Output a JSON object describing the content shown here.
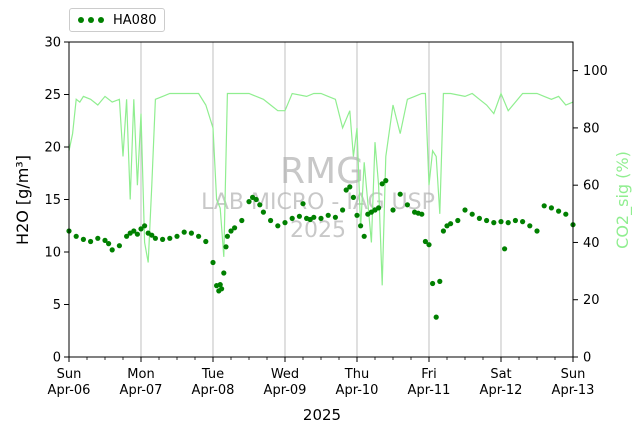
{
  "chart_data": {
    "type": "scatter",
    "xlabel": "2025",
    "ylabel_left": "H2O [g/m³]",
    "ylabel_right": "CO2_sig (%)",
    "ylim_left": [
      0,
      30
    ],
    "ylim_right": [
      0,
      110
    ],
    "yticks_left": [
      "0",
      "5",
      "10",
      "15",
      "20",
      "25",
      "30"
    ],
    "yticks_right": [
      "0",
      "20",
      "40",
      "60",
      "80",
      "100"
    ],
    "xticks": [
      {
        "day": "Sun",
        "date": "Apr-06"
      },
      {
        "day": "Mon",
        "date": "Apr-07"
      },
      {
        "day": "Tue",
        "date": "Apr-08"
      },
      {
        "day": "Wed",
        "date": "Apr-09"
      },
      {
        "day": "Thu",
        "date": "Apr-10"
      },
      {
        "day": "Fri",
        "date": "Apr-11"
      },
      {
        "day": "Sat",
        "date": "Apr-12"
      },
      {
        "day": "Sun",
        "date": "Apr-13"
      }
    ],
    "x_start": "2025-04-06",
    "x_end": "2025-04-13",
    "grid": "vertical at day ticks",
    "legend": "top-left, above plot",
    "watermark": [
      "RMG",
      "LAB MICRO - IAG USP",
      "2025"
    ],
    "colors": {
      "h2o": "#008000",
      "co2_sig": "#90ee90",
      "grid": "#b0b0b0",
      "watermark": "#c8c8c8"
    },
    "series": [
      {
        "name": "HA080",
        "axis": "left",
        "style": "dots",
        "x": [
          0.0,
          0.1,
          0.2,
          0.3,
          0.4,
          0.5,
          0.55,
          0.6,
          0.7,
          0.8,
          0.85,
          0.9,
          0.95,
          1.0,
          1.05,
          1.1,
          1.15,
          1.2,
          1.3,
          1.4,
          1.5,
          1.6,
          1.7,
          1.8,
          1.9,
          2.0,
          2.05,
          2.08,
          2.1,
          2.12,
          2.15,
          2.18,
          2.2,
          2.25,
          2.3,
          2.4,
          2.5,
          2.55,
          2.6,
          2.65,
          2.7,
          2.8,
          2.9,
          3.0,
          3.1,
          3.2,
          3.25,
          3.3,
          3.35,
          3.4,
          3.5,
          3.6,
          3.7,
          3.8,
          3.85,
          3.9,
          3.95,
          4.0,
          4.05,
          4.1,
          4.15,
          4.2,
          4.25,
          4.3,
          4.35,
          4.4,
          4.5,
          4.6,
          4.7,
          4.8,
          4.85,
          4.9,
          4.95,
          5.0,
          5.05,
          5.1,
          5.15,
          5.2,
          5.25,
          5.3,
          5.4,
          5.5,
          5.6,
          5.7,
          5.8,
          5.9,
          6.0,
          6.05,
          6.1,
          6.2,
          6.3,
          6.4,
          6.5,
          6.6,
          6.7,
          6.8,
          6.9,
          7.0
        ],
        "y": [
          12.0,
          11.5,
          11.2,
          11.0,
          11.3,
          11.1,
          10.8,
          10.2,
          10.6,
          11.5,
          11.8,
          12.0,
          11.7,
          12.2,
          12.5,
          11.8,
          11.6,
          11.3,
          11.2,
          11.3,
          11.5,
          11.9,
          11.8,
          11.5,
          11.0,
          9.0,
          6.8,
          6.3,
          6.9,
          6.5,
          8.0,
          10.5,
          11.5,
          12.0,
          12.3,
          13.0,
          14.8,
          15.2,
          15.0,
          14.5,
          13.8,
          13.0,
          12.5,
          12.8,
          13.2,
          13.4,
          14.6,
          13.2,
          13.1,
          13.3,
          13.2,
          13.5,
          13.3,
          14.0,
          15.9,
          16.2,
          15.2,
          13.5,
          12.5,
          11.5,
          13.6,
          13.8,
          14.0,
          14.2,
          16.5,
          16.8,
          14.0,
          15.5,
          14.5,
          13.8,
          13.7,
          13.6,
          11.0,
          10.7,
          7.0,
          3.8,
          7.2,
          12.0,
          12.5,
          12.7,
          13.0,
          14.0,
          13.6,
          13.2,
          13.0,
          12.8,
          12.9,
          10.3,
          12.8,
          13.0,
          12.9,
          12.5,
          12.0,
          14.4,
          14.2,
          13.9,
          13.6,
          12.6
        ]
      },
      {
        "name": "CO2_sig",
        "axis": "right",
        "style": "line",
        "x": [
          0.0,
          0.05,
          0.1,
          0.15,
          0.2,
          0.3,
          0.4,
          0.5,
          0.6,
          0.7,
          0.75,
          0.8,
          0.85,
          0.9,
          0.95,
          1.0,
          1.05,
          1.1,
          1.15,
          1.2,
          1.3,
          1.4,
          1.6,
          1.8,
          1.9,
          2.0,
          2.05,
          2.1,
          2.15,
          2.2,
          2.3,
          2.5,
          2.7,
          2.8,
          2.9,
          3.0,
          3.1,
          3.3,
          3.4,
          3.5,
          3.6,
          3.7,
          3.8,
          3.9,
          3.95,
          4.0,
          4.05,
          4.1,
          4.2,
          4.25,
          4.3,
          4.35,
          4.4,
          4.5,
          4.6,
          4.7,
          4.8,
          4.9,
          4.95,
          5.0,
          5.05,
          5.1,
          5.15,
          5.2,
          5.3,
          5.5,
          5.6,
          5.7,
          5.8,
          5.9,
          6.0,
          6.1,
          6.2,
          6.3,
          6.4,
          6.5,
          6.6,
          6.7,
          6.8,
          6.9,
          7.0
        ],
        "y": [
          72.0,
          78.0,
          90.0,
          89.0,
          91.0,
          90.0,
          88.0,
          91.0,
          89.0,
          90.0,
          70.0,
          90.0,
          55.0,
          90.0,
          60.0,
          85.0,
          40.0,
          33.0,
          60.0,
          90.0,
          91.0,
          92.0,
          92.0,
          92.0,
          88.0,
          80.0,
          55.0,
          52.0,
          35.0,
          92.0,
          92.0,
          92.0,
          90.0,
          88.0,
          86.0,
          86.0,
          92.0,
          91.0,
          92.0,
          92.0,
          91.0,
          90.0,
          80.0,
          86.0,
          70.0,
          80.0,
          45.0,
          68.0,
          40.0,
          75.0,
          60.0,
          25.0,
          70.0,
          88.0,
          78.0,
          90.0,
          91.0,
          92.0,
          92.0,
          60.0,
          72.0,
          70.0,
          50.0,
          92.0,
          92.0,
          91.0,
          92.0,
          90.0,
          88.0,
          85.0,
          92.0,
          86.0,
          89.0,
          92.0,
          92.0,
          92.0,
          91.0,
          90.0,
          91.0,
          88.0,
          89.0
        ]
      }
    ]
  }
}
